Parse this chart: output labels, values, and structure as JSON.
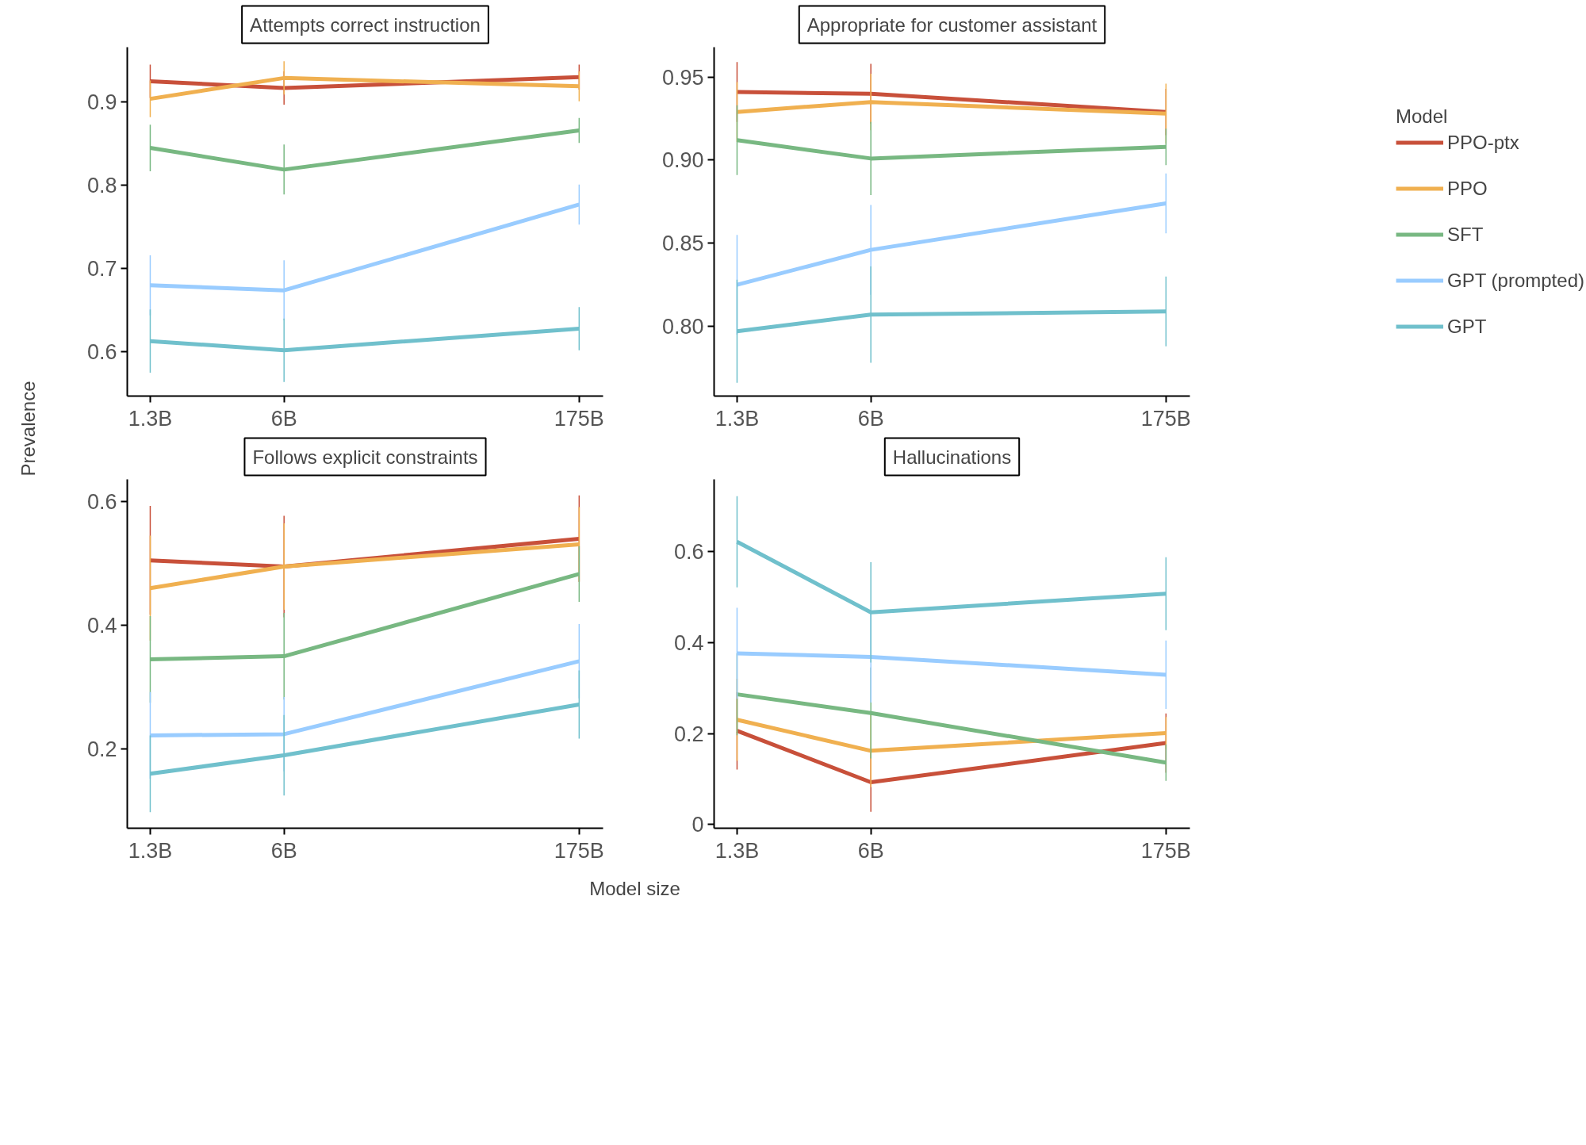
{
  "chart_data": [
    {
      "type": "line",
      "title": "Attempts correct instruction",
      "ylabel": "Prevalence",
      "log": "x",
      "x": [
        1.3,
        6,
        175
      ],
      "xlim": [
        1,
        230
      ],
      "xticks": [
        {
          "value": 1.3,
          "label": "1.3B"
        },
        {
          "value": 6,
          "label": "6B"
        },
        {
          "value": 175,
          "label": "175B"
        }
      ],
      "ylim": [
        0.547,
        0.966
      ],
      "yticks": [
        0.6,
        0.7,
        0.8,
        0.9
      ],
      "grid": false,
      "series": [
        {
          "color": "#c8503a",
          "values": [
            0.925,
            0.917,
            0.93
          ],
          "errors": [
            0.02,
            0.02,
            0.015
          ]
        },
        {
          "color": "#f0b050",
          "values": [
            0.904,
            0.929,
            0.919
          ],
          "errors": [
            0.022,
            0.02,
            0.018
          ]
        },
        {
          "color": "#78b882",
          "values": [
            0.845,
            0.819,
            0.866
          ],
          "errors": [
            0.028,
            0.03,
            0.015
          ]
        },
        {
          "color": "#99ccff",
          "values": [
            0.68,
            0.674,
            0.777
          ],
          "errors": [
            0.036,
            0.036,
            0.024
          ]
        },
        {
          "color": "#70c0cc",
          "values": [
            0.613,
            0.602,
            0.628
          ],
          "errors": [
            0.038,
            0.038,
            0.026
          ]
        }
      ]
    },
    {
      "type": "line",
      "title": "Appropriate for customer assistant",
      "log": "x",
      "x": [
        1.3,
        6,
        175
      ],
      "xlim": [
        1,
        230
      ],
      "xticks": [
        {
          "value": 1.3,
          "label": "1.3B"
        },
        {
          "value": 6,
          "label": "6B"
        },
        {
          "value": 175,
          "label": "175B"
        }
      ],
      "ylim": [
        0.758,
        0.968
      ],
      "yticks": [
        {
          "value": 0.8,
          "label": "0.80"
        },
        {
          "value": 0.85,
          "label": "0.85"
        },
        {
          "value": 0.9,
          "label": "0.90"
        },
        {
          "value": 0.95,
          "label": "0.95"
        }
      ],
      "grid": false,
      "legend": "right",
      "legend_title": "Model",
      "series": [
        {
          "name": "PPO-ptx",
          "color": "#c8503a",
          "values": [
            0.941,
            0.94,
            0.929
          ],
          "errors": [
            0.018,
            0.018,
            0.014
          ]
        },
        {
          "name": "PPO",
          "color": "#f0b050",
          "values": [
            0.929,
            0.935,
            0.928
          ],
          "errors": [
            0.018,
            0.017,
            0.018
          ]
        },
        {
          "name": "SFT",
          "color": "#78b882",
          "values": [
            0.912,
            0.901,
            0.908
          ],
          "errors": [
            0.021,
            0.022,
            0.011
          ]
        },
        {
          "name": "GPT (prompted)",
          "color": "#99ccff",
          "values": [
            0.825,
            0.846,
            0.874
          ],
          "errors": [
            0.03,
            0.027,
            0.018
          ]
        },
        {
          "name": "GPT",
          "color": "#70c0cc",
          "values": [
            0.797,
            0.807,
            0.809
          ],
          "errors": [
            0.031,
            0.029,
            0.021
          ]
        }
      ]
    },
    {
      "type": "line",
      "title": "Follows explicit constraints",
      "xlabel": "Model size",
      "log": "x",
      "x": [
        1.3,
        6,
        175
      ],
      "xlim": [
        1,
        230
      ],
      "xticks": [
        {
          "value": 1.3,
          "label": "1.3B"
        },
        {
          "value": 6,
          "label": "6B"
        },
        {
          "value": 175,
          "label": "175B"
        }
      ],
      "ylim": [
        0.072,
        0.636
      ],
      "yticks": [
        0.2,
        0.4,
        0.6
      ],
      "grid": false,
      "series": [
        {
          "color": "#c8503a",
          "values": [
            0.505,
            0.495,
            0.54
          ],
          "errors": [
            0.088,
            0.082,
            0.07
          ]
        },
        {
          "color": "#f0b050",
          "values": [
            0.46,
            0.495,
            0.531
          ],
          "errors": [
            0.085,
            0.07,
            0.06
          ]
        },
        {
          "color": "#78b882",
          "values": [
            0.345,
            0.35,
            0.483
          ],
          "errors": [
            0.07,
            0.07,
            0.045
          ]
        },
        {
          "color": "#99ccff",
          "values": [
            0.222,
            0.224,
            0.342
          ],
          "errors": [
            0.07,
            0.06,
            0.06
          ]
        },
        {
          "color": "#70c0cc",
          "values": [
            0.16,
            0.19,
            0.272
          ],
          "errors": [
            0.062,
            0.065,
            0.055
          ]
        }
      ]
    },
    {
      "type": "line",
      "title": "Hallucinations",
      "log": "x",
      "x": [
        1.3,
        6,
        175
      ],
      "xlim": [
        1,
        230
      ],
      "xticks": [
        {
          "value": 1.3,
          "label": "1.3B"
        },
        {
          "value": 6,
          "label": "6B"
        },
        {
          "value": 175,
          "label": "175B"
        }
      ],
      "ylim": [
        -0.008,
        0.758
      ],
      "yticks": [
        0,
        0.2,
        0.4,
        0.6
      ],
      "grid": false,
      "series": [
        {
          "color": "#c8503a",
          "values": [
            0.206,
            0.093,
            0.179
          ],
          "errors": [
            0.085,
            0.065,
            0.065
          ]
        },
        {
          "color": "#f0b050",
          "values": [
            0.23,
            0.162,
            0.201
          ],
          "errors": [
            0.09,
            0.08,
            0.035
          ]
        },
        {
          "color": "#78b882",
          "values": [
            0.286,
            0.245,
            0.136
          ],
          "errors": [
            0.09,
            0.1,
            0.04
          ]
        },
        {
          "color": "#99ccff",
          "values": [
            0.376,
            0.368,
            0.329
          ],
          "errors": [
            0.1,
            0.1,
            0.075
          ]
        },
        {
          "color": "#70c0cc",
          "values": [
            0.621,
            0.466,
            0.507
          ],
          "errors": [
            0.1,
            0.11,
            0.08
          ]
        }
      ]
    }
  ]
}
